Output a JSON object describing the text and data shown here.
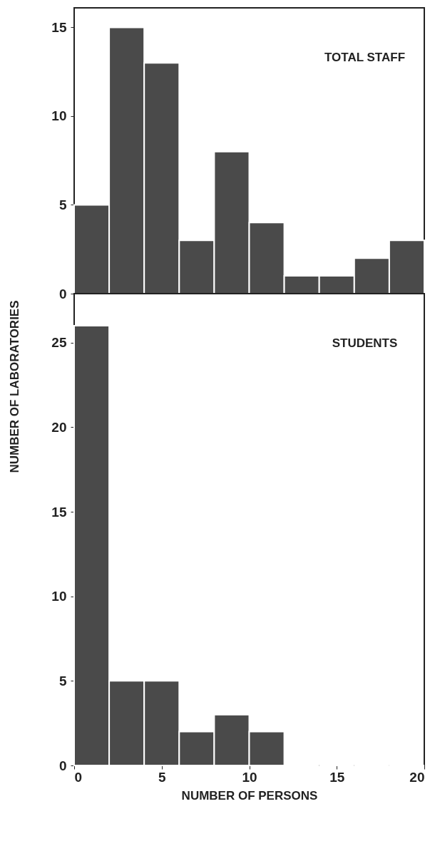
{
  "chart_data": [
    {
      "type": "histogram",
      "bins": [
        0,
        2,
        4,
        6,
        8,
        10,
        12,
        14,
        16,
        18,
        20
      ],
      "values": [
        5,
        15,
        13,
        3,
        8,
        4,
        1,
        1,
        2,
        3
      ],
      "color": "#4a4a4a",
      "xlim": [
        0,
        20
      ],
      "ylim": [
        0,
        16.1
      ],
      "yticks": [
        0,
        5,
        10,
        15
      ],
      "ylabel": "NUMBER OF LABORATORIES",
      "annotations": [
        "TOTAL STAFF"
      ],
      "tick_labels": "y"
    },
    {
      "type": "histogram",
      "bins": [
        0,
        2,
        4,
        6,
        8,
        10,
        12,
        14,
        16,
        18,
        20
      ],
      "values": [
        26,
        5,
        5,
        2,
        3,
        2,
        0,
        0,
        0,
        0
      ],
      "color": "#4a4a4a",
      "xlim": [
        0,
        20
      ],
      "xticks": [
        0,
        5,
        10,
        15,
        20
      ],
      "ylim": [
        0,
        27.9
      ],
      "yticks": [
        0,
        5,
        10,
        15,
        20,
        25
      ],
      "xlabel": "NUMBER OF PERSONS",
      "annotations": [
        "STUDENTS"
      ]
    }
  ]
}
